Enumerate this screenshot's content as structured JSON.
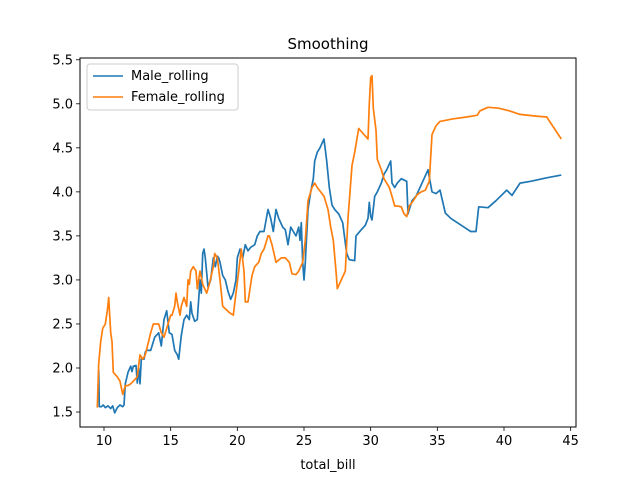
{
  "chart_data": {
    "type": "line",
    "title": "Smoothing",
    "xlabel": "total_bill",
    "ylabel": "",
    "xlim": [
      8.2,
      45.4
    ],
    "ylim": [
      1.33,
      5.52
    ],
    "xticks": [
      10,
      15,
      20,
      25,
      30,
      35,
      40,
      45
    ],
    "yticks": [
      1.5,
      2.0,
      2.5,
      3.0,
      3.5,
      4.0,
      4.5,
      5.0,
      5.5
    ],
    "grid": false,
    "legend_position": "upper-left",
    "series": [
      {
        "name": "Male_rolling",
        "color": "#1f77b4",
        "points": [
          [
            9.6,
            1.98
          ],
          [
            9.65,
            1.56
          ],
          [
            9.8,
            1.56
          ],
          [
            9.95,
            1.58
          ],
          [
            10.1,
            1.55
          ],
          [
            10.3,
            1.57
          ],
          [
            10.5,
            1.54
          ],
          [
            10.65,
            1.57
          ],
          [
            10.8,
            1.49
          ],
          [
            11.0,
            1.55
          ],
          [
            11.2,
            1.58
          ],
          [
            11.4,
            1.56
          ],
          [
            11.5,
            1.58
          ],
          [
            11.6,
            1.82
          ],
          [
            11.8,
            1.95
          ],
          [
            12.0,
            2.02
          ],
          [
            12.1,
            1.96
          ],
          [
            12.2,
            2.02
          ],
          [
            12.4,
            2.03
          ],
          [
            12.5,
            1.83
          ],
          [
            12.6,
            2.0
          ],
          [
            12.7,
            1.82
          ],
          [
            12.8,
            2.1
          ],
          [
            13.0,
            2.1
          ],
          [
            13.1,
            2.18
          ],
          [
            13.2,
            2.2
          ],
          [
            13.5,
            2.2
          ],
          [
            13.8,
            2.35
          ],
          [
            14.1,
            2.4
          ],
          [
            14.3,
            2.25
          ],
          [
            14.5,
            2.55
          ],
          [
            14.7,
            2.65
          ],
          [
            14.9,
            2.4
          ],
          [
            15.1,
            2.38
          ],
          [
            15.3,
            2.2
          ],
          [
            15.5,
            2.15
          ],
          [
            15.6,
            2.1
          ],
          [
            15.8,
            2.37
          ],
          [
            16.0,
            2.55
          ],
          [
            16.2,
            2.6
          ],
          [
            16.4,
            2.55
          ],
          [
            16.5,
            2.75
          ],
          [
            16.6,
            2.62
          ],
          [
            16.8,
            2.53
          ],
          [
            17.0,
            2.55
          ],
          [
            17.2,
            3.0
          ],
          [
            17.3,
            2.85
          ],
          [
            17.4,
            3.3
          ],
          [
            17.5,
            3.35
          ],
          [
            17.6,
            3.25
          ],
          [
            17.8,
            2.92
          ],
          [
            18.0,
            3.0
          ],
          [
            18.2,
            3.25
          ],
          [
            18.35,
            3.15
          ],
          [
            18.5,
            3.27
          ],
          [
            18.6,
            3.25
          ],
          [
            18.7,
            3.2
          ],
          [
            18.9,
            3.05
          ],
          [
            19.1,
            3.0
          ],
          [
            19.3,
            2.87
          ],
          [
            19.5,
            2.78
          ],
          [
            19.7,
            2.85
          ],
          [
            19.9,
            3.0
          ],
          [
            20.0,
            3.25
          ],
          [
            20.2,
            3.35
          ],
          [
            20.4,
            3.25
          ],
          [
            20.6,
            3.4
          ],
          [
            20.8,
            3.33
          ],
          [
            21.0,
            3.37
          ],
          [
            21.3,
            3.4
          ],
          [
            21.5,
            3.5
          ],
          [
            21.7,
            3.55
          ],
          [
            22.0,
            3.55
          ],
          [
            22.3,
            3.8
          ],
          [
            22.5,
            3.7
          ],
          [
            22.7,
            3.55
          ],
          [
            22.9,
            3.8
          ],
          [
            23.1,
            3.7
          ],
          [
            23.4,
            3.6
          ],
          [
            23.6,
            3.57
          ],
          [
            23.8,
            3.4
          ],
          [
            24.0,
            3.6
          ],
          [
            24.2,
            3.55
          ],
          [
            24.4,
            3.5
          ],
          [
            24.6,
            3.6
          ],
          [
            24.7,
            3.45
          ],
          [
            24.8,
            3.65
          ],
          [
            24.9,
            3.2
          ],
          [
            25.0,
            3.0
          ],
          [
            25.1,
            3.2
          ],
          [
            25.3,
            3.8
          ],
          [
            25.5,
            4.0
          ],
          [
            25.7,
            4.15
          ],
          [
            25.8,
            4.35
          ],
          [
            26.0,
            4.45
          ],
          [
            26.2,
            4.5
          ],
          [
            26.5,
            4.6
          ],
          [
            26.7,
            4.35
          ],
          [
            26.9,
            4.05
          ],
          [
            27.1,
            3.85
          ],
          [
            27.3,
            3.8
          ],
          [
            27.6,
            3.75
          ],
          [
            27.9,
            3.65
          ],
          [
            28.2,
            3.3
          ],
          [
            28.4,
            3.23
          ],
          [
            28.8,
            3.22
          ],
          [
            28.9,
            3.5
          ],
          [
            29.3,
            3.57
          ],
          [
            29.6,
            3.62
          ],
          [
            29.8,
            3.7
          ],
          [
            29.9,
            3.88
          ],
          [
            30.0,
            3.72
          ],
          [
            30.1,
            3.68
          ],
          [
            30.3,
            3.95
          ],
          [
            30.5,
            4.0
          ],
          [
            30.8,
            4.1
          ],
          [
            31.0,
            4.2
          ],
          [
            31.2,
            4.25
          ],
          [
            31.5,
            4.35
          ],
          [
            31.6,
            4.1
          ],
          [
            31.8,
            4.05
          ],
          [
            32.0,
            4.1
          ],
          [
            32.3,
            4.15
          ],
          [
            32.7,
            4.12
          ],
          [
            32.8,
            3.75
          ],
          [
            33.1,
            3.9
          ],
          [
            33.4,
            3.95
          ],
          [
            33.7,
            4.05
          ],
          [
            34.0,
            4.15
          ],
          [
            34.3,
            4.25
          ],
          [
            34.6,
            4.0
          ],
          [
            34.9,
            3.98
          ],
          [
            35.2,
            4.02
          ],
          [
            35.6,
            3.76
          ],
          [
            36.0,
            3.7
          ],
          [
            36.5,
            3.65
          ],
          [
            37.0,
            3.6
          ],
          [
            37.5,
            3.55
          ],
          [
            37.9,
            3.55
          ],
          [
            38.1,
            3.83
          ],
          [
            38.8,
            3.82
          ],
          [
            39.4,
            3.9
          ],
          [
            40.2,
            4.02
          ],
          [
            40.6,
            3.96
          ],
          [
            41.2,
            4.1
          ],
          [
            42.0,
            4.12
          ],
          [
            43.2,
            4.16
          ],
          [
            44.3,
            4.19
          ]
        ]
      },
      {
        "name": "Female_rolling",
        "color": "#ff7f0e",
        "points": [
          [
            9.5,
            1.55
          ],
          [
            9.6,
            2.05
          ],
          [
            9.75,
            2.3
          ],
          [
            9.9,
            2.45
          ],
          [
            10.1,
            2.5
          ],
          [
            10.25,
            2.65
          ],
          [
            10.35,
            2.8
          ],
          [
            10.5,
            2.4
          ],
          [
            10.6,
            2.3
          ],
          [
            10.7,
            1.95
          ],
          [
            11.0,
            1.9
          ],
          [
            11.2,
            1.85
          ],
          [
            11.4,
            1.7
          ],
          [
            11.5,
            1.75
          ],
          [
            11.6,
            1.8
          ],
          [
            11.8,
            1.8
          ],
          [
            12.0,
            1.82
          ],
          [
            12.2,
            1.85
          ],
          [
            12.5,
            1.9
          ],
          [
            12.7,
            2.15
          ],
          [
            12.9,
            2.1
          ],
          [
            13.1,
            2.15
          ],
          [
            13.5,
            2.4
          ],
          [
            13.7,
            2.5
          ],
          [
            14.1,
            2.5
          ],
          [
            14.3,
            2.4
          ],
          [
            14.5,
            2.35
          ],
          [
            14.7,
            2.45
          ],
          [
            14.9,
            2.55
          ],
          [
            15.0,
            2.6
          ],
          [
            15.1,
            2.6
          ],
          [
            15.3,
            2.7
          ],
          [
            15.4,
            2.85
          ],
          [
            15.5,
            2.75
          ],
          [
            15.7,
            2.6
          ],
          [
            15.8,
            2.7
          ],
          [
            16.0,
            2.8
          ],
          [
            16.2,
            2.7
          ],
          [
            16.3,
            3.0
          ],
          [
            16.4,
            2.95
          ],
          [
            16.5,
            3.1
          ],
          [
            16.7,
            3.15
          ],
          [
            16.9,
            3.1
          ],
          [
            17.0,
            2.9
          ],
          [
            17.2,
            3.1
          ],
          [
            17.4,
            2.95
          ],
          [
            17.7,
            2.85
          ],
          [
            17.9,
            2.95
          ],
          [
            18.2,
            3.15
          ],
          [
            18.3,
            3.3
          ],
          [
            18.5,
            3.25
          ],
          [
            18.7,
            3.0
          ],
          [
            18.9,
            2.7
          ],
          [
            19.4,
            2.63
          ],
          [
            19.7,
            2.6
          ],
          [
            19.9,
            2.85
          ],
          [
            20.1,
            3.1
          ],
          [
            20.3,
            3.35
          ],
          [
            20.5,
            3.1
          ],
          [
            20.6,
            2.75
          ],
          [
            20.8,
            2.75
          ],
          [
            21.1,
            3.05
          ],
          [
            21.3,
            3.15
          ],
          [
            21.6,
            3.2
          ],
          [
            21.8,
            3.3
          ],
          [
            22.0,
            3.35
          ],
          [
            22.3,
            3.5
          ],
          [
            22.4,
            3.5
          ],
          [
            22.6,
            3.4
          ],
          [
            22.9,
            3.2
          ],
          [
            23.3,
            3.25
          ],
          [
            23.6,
            3.25
          ],
          [
            23.9,
            3.2
          ],
          [
            24.1,
            3.07
          ],
          [
            24.4,
            3.06
          ],
          [
            24.6,
            3.1
          ],
          [
            24.9,
            3.2
          ],
          [
            25.1,
            3.45
          ],
          [
            25.3,
            3.9
          ],
          [
            25.6,
            4.05
          ],
          [
            25.8,
            4.1
          ],
          [
            26.0,
            4.05
          ],
          [
            26.5,
            3.95
          ],
          [
            26.8,
            3.8
          ],
          [
            27.0,
            3.6
          ],
          [
            27.2,
            3.45
          ],
          [
            27.4,
            3.1
          ],
          [
            27.5,
            2.9
          ],
          [
            27.8,
            3.0
          ],
          [
            28.1,
            3.1
          ],
          [
            28.3,
            3.7
          ],
          [
            28.6,
            4.3
          ],
          [
            28.8,
            4.45
          ],
          [
            29.1,
            4.72
          ],
          [
            29.5,
            4.65
          ],
          [
            29.8,
            4.6
          ],
          [
            29.9,
            5.0
          ],
          [
            30.0,
            5.3
          ],
          [
            30.1,
            5.32
          ],
          [
            30.2,
            4.95
          ],
          [
            30.4,
            4.7
          ],
          [
            30.5,
            4.37
          ],
          [
            30.8,
            4.25
          ],
          [
            31.0,
            4.15
          ],
          [
            31.4,
            4.05
          ],
          [
            31.6,
            3.95
          ],
          [
            31.8,
            3.84
          ],
          [
            32.0,
            3.84
          ],
          [
            32.3,
            3.83
          ],
          [
            32.5,
            3.75
          ],
          [
            32.7,
            3.72
          ],
          [
            32.9,
            3.84
          ],
          [
            33.2,
            3.9
          ],
          [
            33.5,
            3.97
          ],
          [
            33.8,
            4.0
          ],
          [
            34.1,
            4.02
          ],
          [
            34.4,
            4.12
          ],
          [
            34.6,
            4.65
          ],
          [
            34.9,
            4.75
          ],
          [
            35.2,
            4.8
          ],
          [
            36.2,
            4.83
          ],
          [
            37.2,
            4.85
          ],
          [
            38.0,
            4.87
          ],
          [
            38.2,
            4.92
          ],
          [
            38.8,
            4.96
          ],
          [
            39.6,
            4.95
          ],
          [
            40.4,
            4.92
          ],
          [
            41.2,
            4.88
          ],
          [
            42.4,
            4.86
          ],
          [
            43.2,
            4.85
          ],
          [
            44.3,
            4.6
          ]
        ]
      }
    ]
  }
}
